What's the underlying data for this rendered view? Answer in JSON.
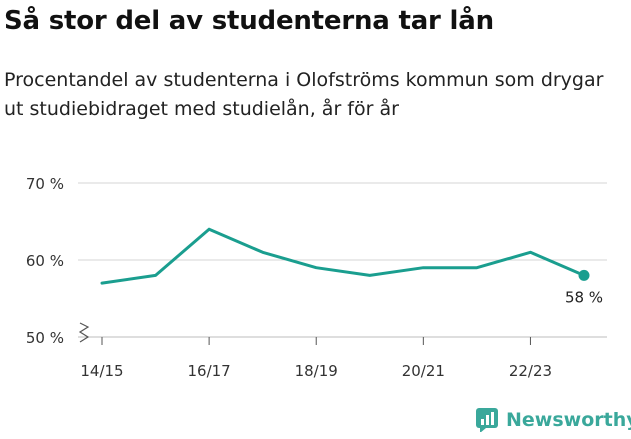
{
  "title": "Så stor del av studenterna tar lån",
  "subtitle": "Procentandel av studenterna i Olofströms kommun som drygar ut studiebidraget med studielån, år för år",
  "brand": "Newsworthy",
  "chart_data": {
    "type": "line",
    "title": "Så stor del av studenterna tar lån",
    "xlabel": "",
    "ylabel": "",
    "x": [
      "14/15",
      "15/16",
      "16/17",
      "17/18",
      "18/19",
      "19/20",
      "20/21",
      "21/22",
      "22/23",
      "23/24"
    ],
    "x_tick_labels": [
      "14/15",
      "16/17",
      "18/19",
      "20/21",
      "22/23"
    ],
    "series": [
      {
        "values": [
          57,
          58,
          64,
          61,
          59,
          58,
          59,
          59,
          61,
          58
        ],
        "color": "#1a9e8f"
      }
    ],
    "ylim": [
      50,
      70
    ],
    "yticks": [
      50,
      60,
      70
    ],
    "ytick_labels": [
      "50 %",
      "60 %",
      "70 %"
    ],
    "last_value_label": "58 %",
    "grid": true,
    "broken_axis": true
  }
}
